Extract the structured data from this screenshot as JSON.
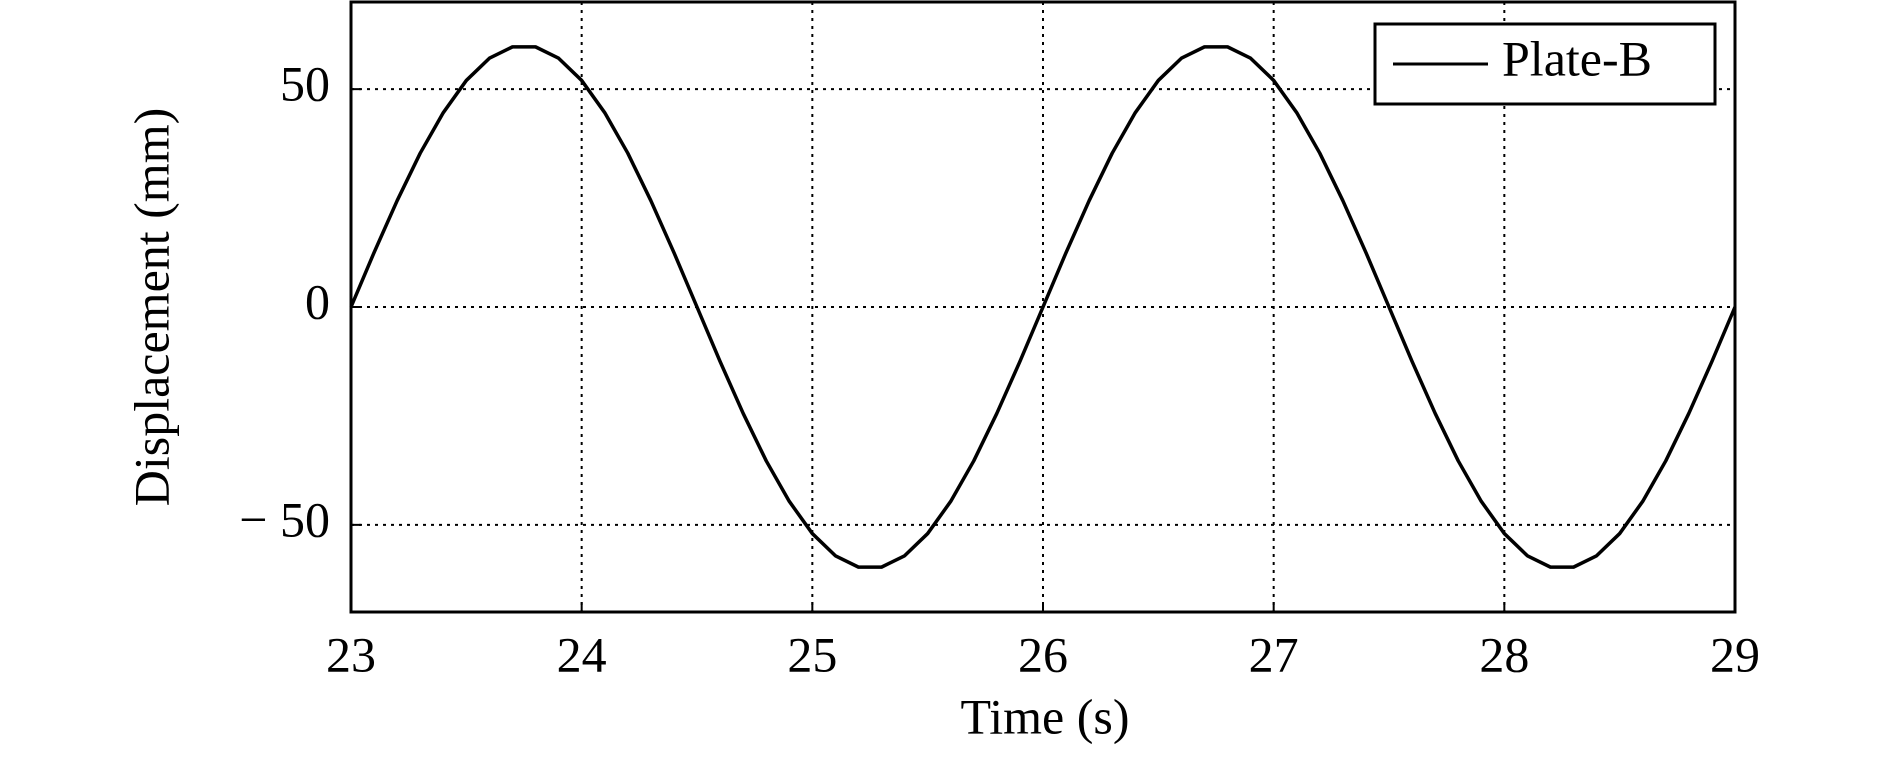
{
  "chart_data": {
    "type": "line",
    "x_label": "Time (s)",
    "y_label": "Displacement (mm)",
    "x": [
      23.0,
      23.1,
      23.2,
      23.3,
      23.4,
      23.5,
      23.6,
      23.7,
      23.8,
      23.9,
      24.0,
      24.1,
      24.2,
      24.3,
      24.4,
      24.5,
      24.6,
      24.7,
      24.8,
      24.9,
      25.0,
      25.1,
      25.2,
      25.3,
      25.4,
      25.5,
      25.6,
      25.7,
      25.8,
      25.9,
      26.0,
      26.1,
      26.2,
      26.3,
      26.4,
      26.5,
      26.6,
      26.7,
      26.8,
      26.9,
      27.0,
      27.1,
      27.2,
      27.3,
      27.4,
      27.5,
      27.6,
      27.7,
      27.8,
      27.9,
      28.0,
      28.1,
      28.2,
      28.3,
      28.4,
      28.5,
      28.6,
      28.7,
      28.8,
      28.9,
      29.0
    ],
    "series": [
      {
        "name": "Plate-B",
        "color": "#000000",
        "values": [
          0,
          12.5,
          24.4,
          35.3,
          44.6,
          52.0,
          57.1,
          59.7,
          59.7,
          57.1,
          52.0,
          44.6,
          35.3,
          24.4,
          12.5,
          0,
          -12.5,
          -24.4,
          -35.3,
          -44.6,
          -52.0,
          -57.1,
          -59.7,
          -59.7,
          -57.1,
          -52.0,
          -44.6,
          -35.3,
          -24.4,
          -12.5,
          0,
          12.5,
          24.4,
          35.3,
          44.6,
          52.0,
          57.1,
          59.7,
          59.7,
          57.1,
          52.0,
          44.6,
          35.3,
          24.4,
          12.5,
          0,
          -12.5,
          -24.4,
          -35.3,
          -44.6,
          -52.0,
          -57.1,
          -59.7,
          -59.7,
          -57.1,
          -52.0,
          -44.6,
          -35.3,
          -24.4,
          -12.5,
          0
        ]
      }
    ],
    "xlim": [
      23,
      29
    ],
    "xticks": [
      23,
      24,
      25,
      26,
      27,
      28,
      29
    ],
    "ylim": [
      -70,
      70
    ],
    "yticks": [
      {
        "value": -50,
        "label": "− 50"
      },
      0,
      50
    ],
    "grid": true,
    "legend": "upper right"
  }
}
